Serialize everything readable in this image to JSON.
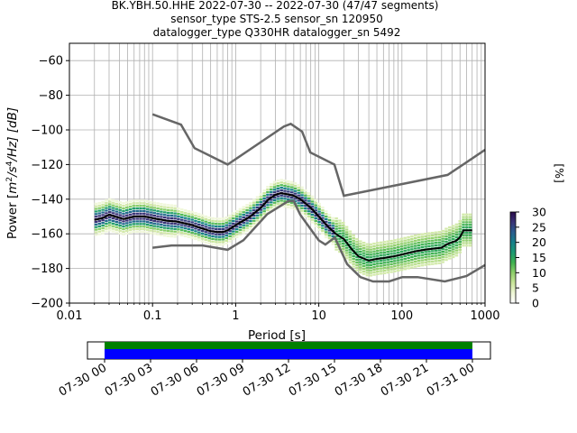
{
  "title_lines": [
    "BK.YBH.50.HHE   2022-07-30 -- 2022-07-30  (47/47 segments)",
    "sensor_type STS-2.5 sensor_sn 120950",
    "datalogger_type Q330HR datalogger_sn 5492"
  ],
  "chart_data": {
    "type": "heatmap",
    "xlabel": "Period [s]",
    "ylabel": "Power [m²/s⁴/Hz] [dB]",
    "ylabel_parts": {
      "main": "Power [",
      "unit_base": "m",
      "sup1": "2",
      "mid": "/s",
      "sup2": "4",
      "tail": "/Hz] [dB]"
    },
    "x_scale": "log",
    "xlim": [
      0.01,
      1000
    ],
    "ylim": [
      -200,
      -50
    ],
    "x_ticks": [
      {
        "value": 0.01,
        "label": "0.01"
      },
      {
        "value": 0.1,
        "label": "0.1"
      },
      {
        "value": 1,
        "label": "1"
      },
      {
        "value": 10,
        "label": "10"
      },
      {
        "value": 100,
        "label": "100"
      },
      {
        "value": 1000,
        "label": "1000"
      }
    ],
    "y_ticks": [
      {
        "value": -60,
        "label": "−60"
      },
      {
        "value": -80,
        "label": "−80"
      },
      {
        "value": -100,
        "label": "−100"
      },
      {
        "value": -120,
        "label": "−120"
      },
      {
        "value": -140,
        "label": "−140"
      },
      {
        "value": -160,
        "label": "−160"
      },
      {
        "value": -180,
        "label": "−180"
      },
      {
        "value": -200,
        "label": "−200"
      }
    ],
    "grid": true,
    "mean_curve": [
      [
        0.02,
        -152
      ],
      [
        0.025,
        -151
      ],
      [
        0.03,
        -149
      ],
      [
        0.035,
        -150
      ],
      [
        0.045,
        -151.5
      ],
      [
        0.06,
        -150
      ],
      [
        0.08,
        -150
      ],
      [
        0.1,
        -151
      ],
      [
        0.15,
        -152.5
      ],
      [
        0.2,
        -153
      ],
      [
        0.3,
        -155
      ],
      [
        0.4,
        -157
      ],
      [
        0.5,
        -158.5
      ],
      [
        0.6,
        -159
      ],
      [
        0.7,
        -159
      ],
      [
        0.8,
        -158
      ],
      [
        1,
        -155
      ],
      [
        1.5,
        -150
      ],
      [
        2,
        -145
      ],
      [
        2.5,
        -140
      ],
      [
        3,
        -137.5
      ],
      [
        3.5,
        -136.5
      ],
      [
        4,
        -137
      ],
      [
        5,
        -138
      ],
      [
        6,
        -140
      ],
      [
        8,
        -145
      ],
      [
        10,
        -150
      ],
      [
        13,
        -156
      ],
      [
        16,
        -160
      ],
      [
        20,
        -163
      ],
      [
        25,
        -169
      ],
      [
        30,
        -173
      ],
      [
        40,
        -175.5
      ],
      [
        50,
        -174.5
      ],
      [
        60,
        -174
      ],
      [
        80,
        -173
      ],
      [
        100,
        -172
      ],
      [
        150,
        -170
      ],
      [
        200,
        -169
      ],
      [
        300,
        -168
      ],
      [
        350,
        -166
      ],
      [
        450,
        -164
      ],
      [
        500,
        -162
      ],
      [
        550,
        -158
      ],
      [
        700,
        -158
      ]
    ],
    "nhnm": [
      [
        0.1,
        -91
      ],
      [
        0.22,
        -97
      ],
      [
        0.32,
        -110.5
      ],
      [
        0.8,
        -120
      ],
      [
        3.8,
        -98
      ],
      [
        4.6,
        -96.5
      ],
      [
        6.3,
        -101
      ],
      [
        7.9,
        -113
      ],
      [
        15.4,
        -120
      ],
      [
        20,
        -138
      ],
      [
        354.8,
        -126
      ],
      [
        1000,
        -111.5
      ]
    ],
    "nlnm": [
      [
        0.1,
        -168
      ],
      [
        0.17,
        -166.7
      ],
      [
        0.4,
        -166.7
      ],
      [
        0.8,
        -169.2
      ],
      [
        1.24,
        -163.7
      ],
      [
        2.4,
        -148.6
      ],
      [
        4.3,
        -141.1
      ],
      [
        5,
        -141.1
      ],
      [
        6,
        -149
      ],
      [
        10,
        -163.8
      ],
      [
        12,
        -166.2
      ],
      [
        15.6,
        -162.1
      ],
      [
        21.9,
        -177.5
      ],
      [
        31.6,
        -185
      ],
      [
        45,
        -187.5
      ],
      [
        70,
        -187.5
      ],
      [
        101,
        -185
      ],
      [
        154,
        -185
      ],
      [
        328,
        -187.5
      ],
      [
        600,
        -184.4
      ],
      [
        1000,
        -178
      ]
    ],
    "colorbar": {
      "label": "[%]",
      "min": 0,
      "max": 30,
      "ticks": [
        {
          "value": 0,
          "label": "0"
        },
        {
          "value": 5,
          "label": "5"
        },
        {
          "value": 10,
          "label": "10"
        },
        {
          "value": 15,
          "label": "15"
        },
        {
          "value": 20,
          "label": "20"
        },
        {
          "value": 25,
          "label": "25"
        },
        {
          "value": 30,
          "label": "30"
        }
      ],
      "colors": [
        "#ffffff",
        "#eef6d4",
        "#c9e59a",
        "#8fcf6a",
        "#3fb24f",
        "#1d9a72",
        "#16808a",
        "#2a5d8f",
        "#3a3478",
        "#2a0a4a"
      ]
    },
    "mean_color": "#000000",
    "noise_model_color": "#666666",
    "timeline": {
      "tick_labels": [
        "07-30 00",
        "07-30 03",
        "07-30 06",
        "07-30 09",
        "07-30 12",
        "07-30 15",
        "07-30 18",
        "07-30 21",
        "07-31 00"
      ],
      "coverage_color": "#008000",
      "segments_color": "#0000ff"
    }
  }
}
